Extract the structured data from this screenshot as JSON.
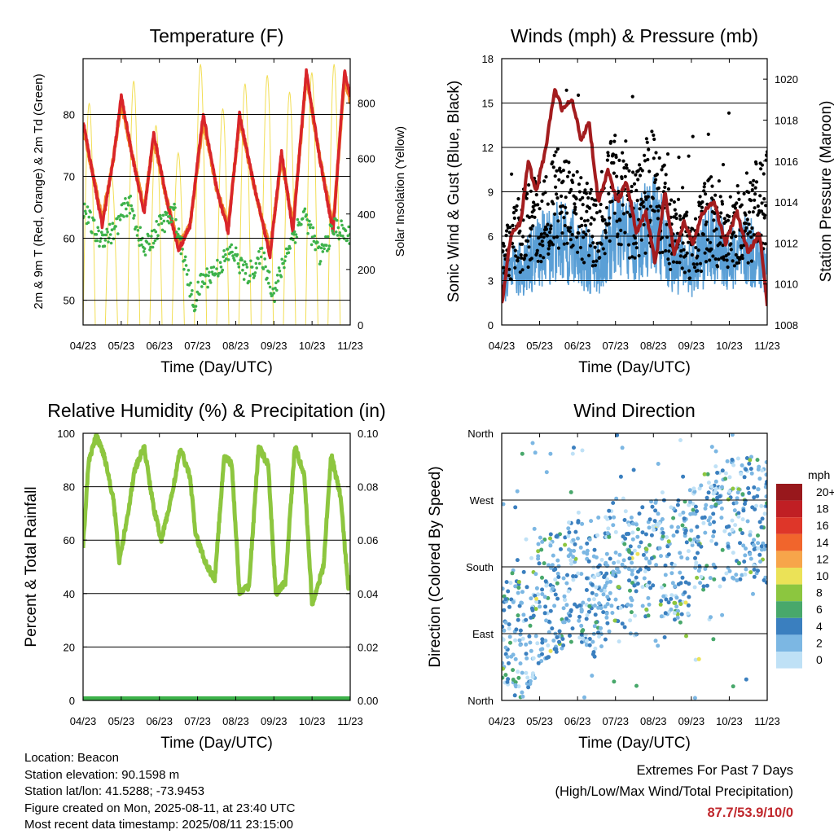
{
  "colors": {
    "temp_2m": "#d9252a",
    "temp_9m": "#f08a2a",
    "dewpoint": "#3db24a",
    "solar": "#f2de55",
    "wind": "#5a9fd6",
    "gust": "#000000",
    "pressure": "#a31c1e",
    "humidity": "#8dc63f",
    "precip": "#3db24a"
  },
  "panels": {
    "temperature": {
      "title": "Temperature (F)",
      "ylabel": "2m & 9m T (Red, Orange) & 2m Td (Green)",
      "ylabel_right": "Solar Insolation (Yellow)",
      "xlabel": "Time (Day/UTC)"
    },
    "winds": {
      "title": "Winds (mph) & Pressure (mb)",
      "ylabel": "Sonic Wind & Gust (Blue, Black)",
      "ylabel_right": "Station Pressure (Maroon)",
      "xlabel": "Time (Day/UTC)"
    },
    "humidity": {
      "title": "Relative Humidity (%) & Precipitation (in)",
      "ylabel": "Percent & Total Rainfall",
      "xlabel": "Time (Day/UTC)"
    },
    "direction": {
      "title": "Wind Direction",
      "ylabel": "Direction (Colored By Speed)",
      "xlabel": "Time (Day/UTC)"
    }
  },
  "legend": {
    "caption": "mph",
    "levels": [
      {
        "label": "20+",
        "color": "#98181c"
      },
      {
        "label": "18",
        "color": "#c01f24"
      },
      {
        "label": "16",
        "color": "#de3629"
      },
      {
        "label": "14",
        "color": "#f1652c"
      },
      {
        "label": "12",
        "color": "#f7a54a"
      },
      {
        "label": "10",
        "color": "#ebe257"
      },
      {
        "label": "8",
        "color": "#8cc63f"
      },
      {
        "label": "6",
        "color": "#48a86b"
      },
      {
        "label": "4",
        "color": "#3a7fbf"
      },
      {
        "label": "2",
        "color": "#7cb7e3"
      },
      {
        "label": "0",
        "color": "#bfe1f6"
      }
    ]
  },
  "footer": {
    "location": "Location: Beacon",
    "elevation": "Station elevation: 90.1598 m",
    "latlon": "Station lat/lon: 41.5288; -73.9453",
    "created": "Figure created on Mon, 2025-08-11, at 23:40 UTC",
    "recent": "Most recent data timestamp: 2025/08/11 23:15:00",
    "extremes_title": "Extremes For Past 7 Days",
    "extremes_sub": "(High/Low/Max Wind/Total Precipitation)",
    "extremes_values": "87.7/53.9/10/0"
  },
  "chart_data": [
    {
      "type": "line",
      "title": "Temperature (F)",
      "xlabel": "Time (Day/UTC)",
      "ylabel": "2m & 9m T (Red, Orange) & 2m Td (Green)",
      "ylabel_right": "Solar Insolation (Yellow)",
      "x_ticks": [
        "04/23",
        "05/23",
        "06/23",
        "07/23",
        "08/23",
        "09/23",
        "10/23",
        "11/23"
      ],
      "xlim": [
        0,
        7
      ],
      "ylim": [
        46,
        89
      ],
      "y_ticks": [
        50,
        60,
        70,
        80
      ],
      "ylim_right": [
        0,
        960
      ],
      "y_ticks_right": [
        0,
        200,
        400,
        600,
        800
      ],
      "grid": "horizontal",
      "series": [
        {
          "name": "2m T",
          "axis": "left",
          "color_key": "temp_2m",
          "x": [
            0,
            0.5,
            0.8,
            1.0,
            1.3,
            1.6,
            1.85,
            2.2,
            2.5,
            2.8,
            3.15,
            3.5,
            3.8,
            4.1,
            4.5,
            4.9,
            5.2,
            5.5,
            5.85,
            6.2,
            6.55,
            6.85,
            7.0
          ],
          "y": [
            79,
            62,
            73,
            83,
            73,
            64,
            77,
            66,
            58,
            62,
            80,
            68,
            61,
            80,
            68,
            57,
            74,
            61,
            87,
            73,
            61,
            87,
            83
          ]
        },
        {
          "name": "9m T",
          "axis": "left",
          "color_key": "temp_9m",
          "x": [
            0,
            0.5,
            0.8,
            1.0,
            1.3,
            1.6,
            1.85,
            2.2,
            2.5,
            2.8,
            3.15,
            3.5,
            3.8,
            4.1,
            4.5,
            4.9,
            5.2,
            5.5,
            5.85,
            6.2,
            6.55,
            6.85,
            7.0
          ],
          "y": [
            78,
            63,
            73,
            82,
            73,
            65,
            76,
            66,
            59,
            62,
            79,
            68,
            62,
            79,
            68,
            58,
            73,
            62,
            86,
            73,
            62,
            86,
            82
          ]
        },
        {
          "name": "2m Td",
          "axis": "left",
          "color_key": "dewpoint",
          "x": [
            0,
            0.4,
            0.8,
            1.2,
            1.6,
            2.0,
            2.4,
            2.9,
            3.1,
            3.5,
            3.9,
            4.3,
            4.7,
            5.0,
            5.4,
            5.8,
            6.2,
            6.6,
            7.0
          ],
          "y": [
            65,
            60,
            61,
            66,
            58,
            62,
            64,
            49,
            53,
            55,
            58,
            54,
            57,
            51,
            59,
            64,
            57,
            62,
            60
          ]
        },
        {
          "name": "Solar",
          "axis": "right",
          "color_key": "solar",
          "daily_peaks": [
            800,
            540,
            880,
            720,
            620,
            940,
            780,
            870,
            900,
            840,
            910,
            940
          ]
        }
      ]
    },
    {
      "type": "line",
      "title": "Winds (mph) & Pressure (mb)",
      "xlabel": "Time (Day/UTC)",
      "ylabel": "Sonic Wind & Gust (Blue, Black)",
      "ylabel_right": "Station Pressure (Maroon)",
      "x_ticks": [
        "04/23",
        "05/23",
        "06/23",
        "07/23",
        "08/23",
        "09/23",
        "10/23",
        "11/23"
      ],
      "xlim": [
        0,
        7
      ],
      "ylim": [
        0,
        18
      ],
      "y_ticks": [
        0,
        3,
        6,
        9,
        12,
        15,
        18
      ],
      "ylim_right": [
        1008,
        1021
      ],
      "y_ticks_right": [
        1008,
        1010,
        1012,
        1014,
        1016,
        1018,
        1020
      ],
      "grid": "horizontal",
      "series": [
        {
          "name": "Sonic Wind",
          "axis": "left",
          "color_key": "wind",
          "x": [
            0,
            0.5,
            1.0,
            1.5,
            2.0,
            2.5,
            3.0,
            3.5,
            4.0,
            4.5,
            5.0,
            5.5,
            6.0,
            6.5,
            7.0
          ],
          "y": [
            2.5,
            3.0,
            4.0,
            4.5,
            4.0,
            3.0,
            5.0,
            4.5,
            5.5,
            3.5,
            3.0,
            4.5,
            3.5,
            4.0,
            3.0
          ]
        },
        {
          "name": "Gust",
          "axis": "left",
          "color_key": "gust",
          "x": [
            0,
            0.5,
            1.0,
            1.5,
            2.0,
            2.5,
            3.0,
            3.5,
            4.0,
            4.5,
            5.0,
            5.5,
            6.0,
            6.5,
            7.0
          ],
          "y": [
            4,
            6,
            7,
            8,
            7,
            6,
            9,
            7,
            9,
            6,
            5,
            7,
            6,
            7,
            8
          ]
        },
        {
          "name": "Station Pressure",
          "axis": "right",
          "color_key": "pressure",
          "x": [
            0,
            0.25,
            0.5,
            0.7,
            0.9,
            1.15,
            1.4,
            1.6,
            1.85,
            2.1,
            2.3,
            2.55,
            2.8,
            3.05,
            3.3,
            3.55,
            3.8,
            4.05,
            4.3,
            4.55,
            4.8,
            5.05,
            5.3,
            5.6,
            5.9,
            6.2,
            6.5,
            6.8,
            7.0
          ],
          "y": [
            1009.0,
            1012.5,
            1013.0,
            1016.0,
            1014.5,
            1016.5,
            1019.5,
            1018.5,
            1019.0,
            1017.0,
            1018.0,
            1014.0,
            1015.5,
            1014.0,
            1015.0,
            1012.5,
            1013.5,
            1011.0,
            1014.5,
            1011.5,
            1013.0,
            1012.0,
            1013.5,
            1014.0,
            1012.0,
            1013.5,
            1011.5,
            1012.5,
            1009.0
          ]
        }
      ]
    },
    {
      "type": "line",
      "title": "Relative Humidity (%) & Precipitation (in)",
      "xlabel": "Time (Day/UTC)",
      "ylabel": "Percent & Total Rainfall",
      "x_ticks": [
        "04/23",
        "05/23",
        "06/23",
        "07/23",
        "08/23",
        "09/23",
        "10/23",
        "11/23"
      ],
      "xlim": [
        0,
        7
      ],
      "ylim": [
        0,
        100
      ],
      "y_ticks": [
        0,
        20,
        40,
        60,
        80,
        100
      ],
      "ylim_right": [
        0,
        0.1
      ],
      "y_ticks_right": [
        "0.00",
        "0.02",
        "0.04",
        "0.06",
        "0.08",
        "0.10"
      ],
      "grid": "horizontal",
      "series": [
        {
          "name": "Relative Humidity",
          "axis": "left",
          "color_key": "humidity",
          "x": [
            0,
            0.15,
            0.35,
            0.55,
            0.8,
            0.95,
            1.15,
            1.35,
            1.6,
            1.85,
            2.05,
            2.3,
            2.55,
            2.8,
            2.95,
            3.2,
            3.45,
            3.7,
            3.9,
            4.1,
            4.35,
            4.6,
            4.85,
            5.05,
            5.3,
            5.55,
            5.8,
            6.0,
            6.3,
            6.5,
            6.75,
            6.95,
            7.0
          ],
          "y": [
            58,
            90,
            99,
            92,
            75,
            52,
            68,
            86,
            95,
            72,
            60,
            75,
            94,
            84,
            62,
            52,
            45,
            92,
            88,
            40,
            43,
            95,
            88,
            40,
            44,
            95,
            84,
            36,
            50,
            92,
            76,
            42,
            47
          ]
        },
        {
          "name": "Total Rainfall",
          "axis": "right",
          "color_key": "precip",
          "x": [
            0,
            7
          ],
          "y": [
            0,
            0
          ]
        }
      ]
    },
    {
      "type": "scatter",
      "title": "Wind Direction",
      "xlabel": "Time (Day/UTC)",
      "ylabel": "Direction (Colored By Speed)",
      "x_ticks": [
        "04/23",
        "05/23",
        "06/23",
        "07/23",
        "08/23",
        "09/23",
        "10/23",
        "11/23"
      ],
      "xlim": [
        0,
        7
      ],
      "ylim": [
        0,
        360
      ],
      "y_ticks": [
        "North",
        "East",
        "South",
        "West",
        "North"
      ],
      "grid": "horizontal",
      "color_by": "speed (mph)",
      "direction_trend": {
        "x": [
          0,
          0.5,
          1.0,
          1.5,
          2.0,
          2.5,
          3.0,
          3.5,
          4.0,
          4.5,
          5.0,
          5.5,
          6.0,
          6.5,
          7.0
        ],
        "y": [
          110,
          80,
          130,
          150,
          170,
          140,
          190,
          160,
          210,
          180,
          200,
          230,
          240,
          250,
          230
        ]
      }
    }
  ]
}
